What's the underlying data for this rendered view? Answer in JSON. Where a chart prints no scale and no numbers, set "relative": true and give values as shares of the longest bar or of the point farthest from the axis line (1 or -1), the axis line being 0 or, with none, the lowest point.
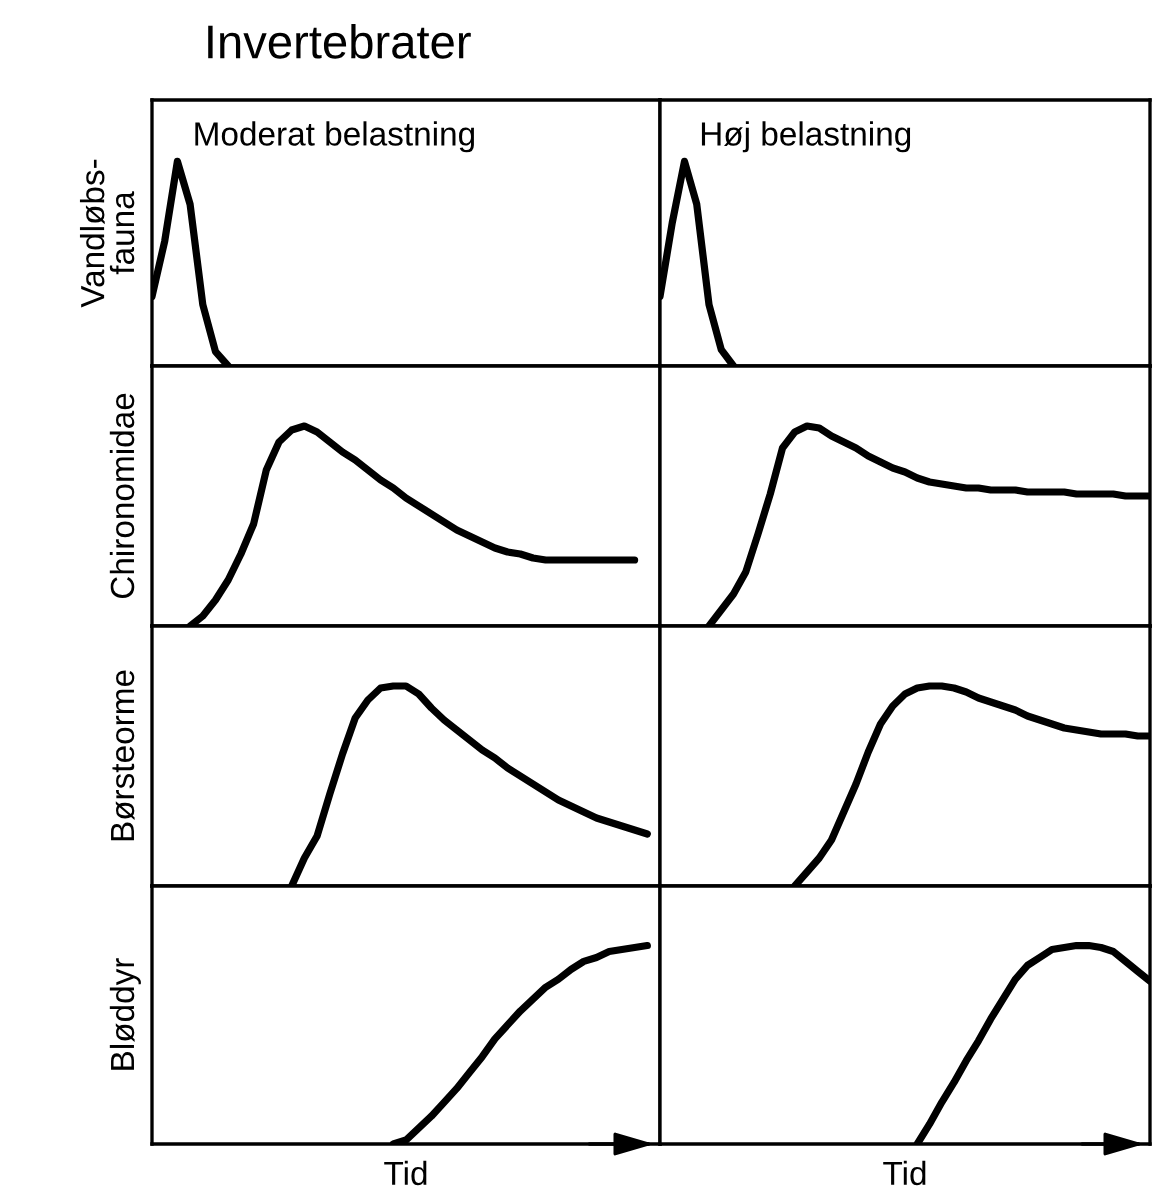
{
  "chart_data": [
    {
      "type": "line",
      "title": "Invertebrater",
      "subtitle": "Moderat belastning",
      "ylabel": "Vandløbs-\nfauna",
      "relative": true,
      "tick_labels": false,
      "marker": "none",
      "line_style": "solid",
      "categories": [
        null,
        null,
        null,
        null,
        null,
        null,
        null,
        null,
        null,
        null,
        null,
        null,
        null,
        null,
        null,
        null,
        null,
        null,
        null,
        null,
        null,
        null,
        null,
        null,
        null,
        null,
        null,
        null,
        null,
        null,
        null,
        null,
        null,
        null,
        null,
        null,
        null,
        null,
        null,
        null,
        null
      ],
      "series": [
        {
          "color": "#000000",
          "values": [
            0.34,
            0.61,
            1.0,
            0.79,
            0.3,
            0.07,
            0,
            null,
            null,
            null,
            null,
            null,
            null,
            null,
            null,
            null,
            null,
            null,
            null,
            null,
            null,
            null,
            null,
            null,
            null,
            null,
            null,
            null,
            null,
            null,
            null,
            null,
            null,
            null,
            null,
            null,
            null,
            null,
            null,
            null,
            null
          ]
        }
      ]
    },
    {
      "type": "line",
      "subtitle": "Høj belastning",
      "relative": true,
      "tick_labels": false,
      "marker": "none",
      "line_style": "solid",
      "categories": [
        null,
        null,
        null,
        null,
        null,
        null,
        null,
        null,
        null,
        null,
        null,
        null,
        null,
        null,
        null,
        null,
        null,
        null,
        null,
        null,
        null,
        null,
        null,
        null,
        null,
        null,
        null,
        null,
        null,
        null,
        null,
        null,
        null,
        null,
        null,
        null,
        null,
        null,
        null,
        null,
        null
      ],
      "series": [
        {
          "color": "#000000",
          "values": [
            0.34,
            0.7,
            1.0,
            0.79,
            0.3,
            0.08,
            0,
            null,
            null,
            null,
            null,
            null,
            null,
            null,
            null,
            null,
            null,
            null,
            null,
            null,
            null,
            null,
            null,
            null,
            null,
            null,
            null,
            null,
            null,
            null,
            null,
            null,
            null,
            null,
            null,
            null,
            null,
            null,
            null,
            null,
            null
          ]
        }
      ]
    },
    {
      "type": "line",
      "ylabel": "Chironomidae",
      "relative": true,
      "tick_labels": false,
      "marker": "none",
      "line_style": "solid",
      "categories": [
        null,
        null,
        null,
        null,
        null,
        null,
        null,
        null,
        null,
        null,
        null,
        null,
        null,
        null,
        null,
        null,
        null,
        null,
        null,
        null,
        null,
        null,
        null,
        null,
        null,
        null,
        null,
        null,
        null,
        null,
        null,
        null,
        null,
        null,
        null,
        null,
        null,
        null,
        null,
        null,
        null
      ],
      "series": [
        {
          "color": "#000000",
          "values": [
            null,
            null,
            null,
            0,
            0.05,
            0.13,
            0.23,
            0.36,
            0.51,
            0.78,
            0.92,
            0.98,
            1.0,
            0.97,
            0.92,
            0.87,
            0.83,
            0.78,
            0.73,
            0.69,
            0.64,
            0.6,
            0.56,
            0.52,
            0.48,
            0.45,
            0.42,
            0.39,
            0.37,
            0.36,
            0.34,
            0.33,
            0.33,
            0.33,
            0.33,
            0.33,
            0.33,
            0.33,
            0.33,
            null,
            null
          ]
        }
      ]
    },
    {
      "type": "line",
      "relative": true,
      "tick_labels": false,
      "marker": "none",
      "line_style": "solid",
      "categories": [
        null,
        null,
        null,
        null,
        null,
        null,
        null,
        null,
        null,
        null,
        null,
        null,
        null,
        null,
        null,
        null,
        null,
        null,
        null,
        null,
        null,
        null,
        null,
        null,
        null,
        null,
        null,
        null,
        null,
        null,
        null,
        null,
        null,
        null,
        null,
        null,
        null,
        null,
        null,
        null,
        null
      ],
      "series": [
        {
          "color": "#000000",
          "values": [
            null,
            null,
            null,
            null,
            0,
            0.08,
            0.16,
            0.27,
            0.46,
            0.66,
            0.89,
            0.97,
            1.0,
            0.99,
            0.95,
            0.92,
            0.89,
            0.85,
            0.82,
            0.79,
            0.77,
            0.74,
            0.72,
            0.71,
            0.7,
            0.69,
            0.69,
            0.68,
            0.68,
            0.68,
            0.67,
            0.67,
            0.67,
            0.67,
            0.66,
            0.66,
            0.66,
            0.66,
            0.65,
            0.65,
            0.65
          ]
        }
      ]
    },
    {
      "type": "line",
      "ylabel": "Børsteorme",
      "relative": true,
      "tick_labels": false,
      "marker": "none",
      "line_style": "solid",
      "categories": [
        null,
        null,
        null,
        null,
        null,
        null,
        null,
        null,
        null,
        null,
        null,
        null,
        null,
        null,
        null,
        null,
        null,
        null,
        null,
        null,
        null,
        null,
        null,
        null,
        null,
        null,
        null,
        null,
        null,
        null,
        null,
        null,
        null,
        null,
        null,
        null,
        null,
        null,
        null,
        null,
        null
      ],
      "series": [
        {
          "color": "#000000",
          "values": [
            null,
            null,
            null,
            null,
            null,
            null,
            null,
            null,
            null,
            null,
            null,
            0,
            0.14,
            0.25,
            0.46,
            0.66,
            0.84,
            0.93,
            0.99,
            1.0,
            1.0,
            0.96,
            0.89,
            0.83,
            0.78,
            0.73,
            0.68,
            0.64,
            0.59,
            0.55,
            0.51,
            0.47,
            0.43,
            0.4,
            0.37,
            0.34,
            0.32,
            0.3,
            0.28,
            0.26,
            null
          ]
        }
      ]
    },
    {
      "type": "line",
      "relative": true,
      "tick_labels": false,
      "marker": "none",
      "line_style": "solid",
      "categories": [
        null,
        null,
        null,
        null,
        null,
        null,
        null,
        null,
        null,
        null,
        null,
        null,
        null,
        null,
        null,
        null,
        null,
        null,
        null,
        null,
        null,
        null,
        null,
        null,
        null,
        null,
        null,
        null,
        null,
        null,
        null,
        null,
        null,
        null,
        null,
        null,
        null,
        null,
        null,
        null,
        null
      ],
      "series": [
        {
          "color": "#000000",
          "values": [
            null,
            null,
            null,
            null,
            null,
            null,
            null,
            null,
            null,
            null,
            null,
            0,
            0.07,
            0.14,
            0.23,
            0.37,
            0.51,
            0.67,
            0.81,
            0.9,
            0.96,
            0.99,
            1.0,
            1.0,
            0.99,
            0.97,
            0.94,
            0.92,
            0.9,
            0.88,
            0.85,
            0.83,
            0.81,
            0.79,
            0.78,
            0.77,
            0.76,
            0.76,
            0.76,
            0.75,
            0.75
          ]
        }
      ]
    },
    {
      "type": "line",
      "ylabel": "Bløddyr",
      "xlabel": "Tid",
      "relative": true,
      "tick_labels": false,
      "marker": "none",
      "line_style": "solid",
      "categories": [
        null,
        null,
        null,
        null,
        null,
        null,
        null,
        null,
        null,
        null,
        null,
        null,
        null,
        null,
        null,
        null,
        null,
        null,
        null,
        null,
        null,
        null,
        null,
        null,
        null,
        null,
        null,
        null,
        null,
        null,
        null,
        null,
        null,
        null,
        null,
        null,
        null,
        null,
        null,
        null,
        null
      ],
      "series": [
        {
          "color": "#000000",
          "values": [
            null,
            null,
            null,
            null,
            null,
            null,
            null,
            null,
            null,
            null,
            null,
            null,
            null,
            null,
            null,
            null,
            null,
            null,
            null,
            0,
            0.02,
            0.08,
            0.14,
            0.21,
            0.28,
            0.36,
            0.44,
            0.53,
            0.6,
            0.67,
            0.73,
            0.79,
            0.83,
            0.88,
            0.92,
            0.94,
            0.97,
            0.98,
            0.99,
            1.0,
            null
          ]
        }
      ]
    },
    {
      "type": "line",
      "xlabel": "Tid",
      "relative": true,
      "tick_labels": false,
      "marker": "none",
      "line_style": "solid",
      "categories": [
        null,
        null,
        null,
        null,
        null,
        null,
        null,
        null,
        null,
        null,
        null,
        null,
        null,
        null,
        null,
        null,
        null,
        null,
        null,
        null,
        null,
        null,
        null,
        null,
        null,
        null,
        null,
        null,
        null,
        null,
        null,
        null,
        null,
        null,
        null,
        null,
        null,
        null,
        null,
        null,
        null
      ],
      "series": [
        {
          "color": "#000000",
          "values": [
            null,
            null,
            null,
            null,
            null,
            null,
            null,
            null,
            null,
            null,
            null,
            null,
            null,
            null,
            null,
            null,
            null,
            null,
            null,
            null,
            null,
            0,
            0.1,
            0.21,
            0.31,
            0.42,
            0.52,
            0.63,
            0.73,
            0.83,
            0.9,
            0.94,
            0.98,
            0.99,
            1.0,
            1.0,
            0.99,
            0.97,
            0.92,
            0.87,
            0.82
          ]
        }
      ]
    }
  ]
}
